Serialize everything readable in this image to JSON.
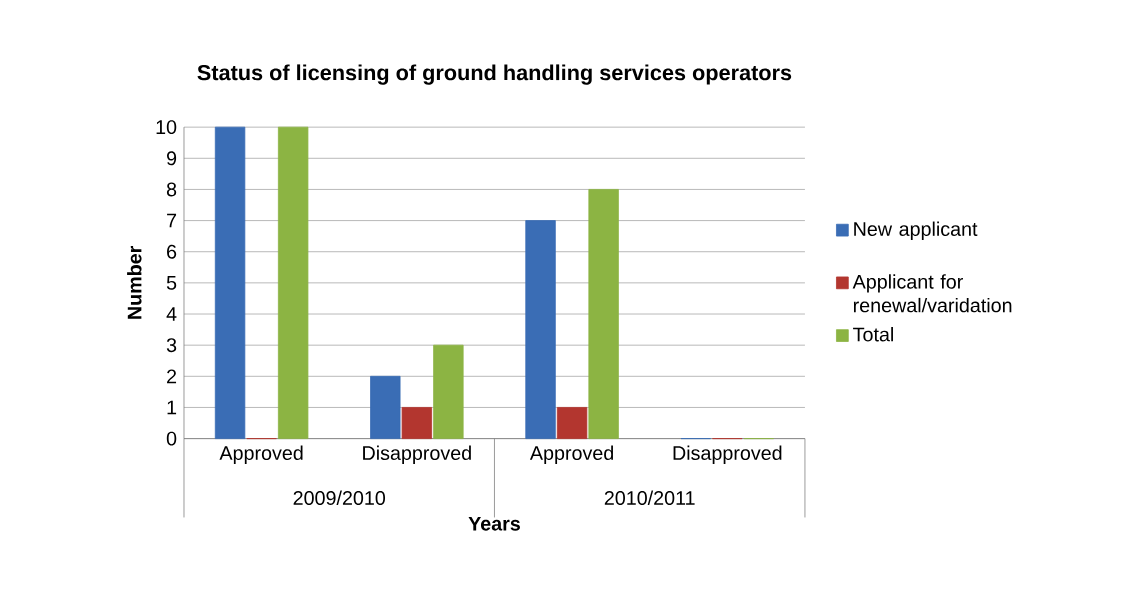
{
  "chart_data": {
    "type": "bar",
    "title": "Status of licensing of ground handling services operators",
    "xlabel": "Years",
    "ylabel": "Number",
    "categories": [
      "Approved",
      "Disapproved",
      "Approved",
      "Disapproved"
    ],
    "annotations": [
      "2009/2010",
      "2010/2011"
    ],
    "series": [
      {
        "name": "New applicant",
        "color": "#3a6db5",
        "values": [
          10,
          2,
          7,
          0
        ]
      },
      {
        "name": "Applicant for renewal/varidation",
        "color": "#b3362f",
        "values": [
          0,
          1,
          1,
          0
        ]
      },
      {
        "name": "Total",
        "color": "#8cb443",
        "values": [
          10,
          3,
          8,
          0
        ]
      }
    ],
    "ylim": [
      0,
      10
    ],
    "yticks": [
      0,
      1,
      2,
      3,
      4,
      5,
      6,
      7,
      8,
      9,
      10
    ],
    "grid": "y",
    "legend": "right"
  }
}
